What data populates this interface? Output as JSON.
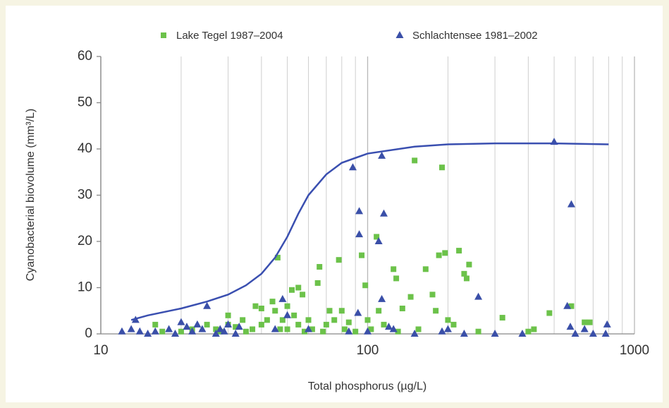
{
  "chart_data": {
    "type": "scatter",
    "x_label": "Total phosphorus (µg/L)",
    "y_label": "Cyanobacterial biovolume (mm³/L)",
    "log_x": true,
    "grid": "x",
    "legend": "top",
    "xlim": [
      10,
      1000
    ],
    "ylim": [
      0,
      60
    ],
    "xticks": [
      10,
      100,
      1000
    ],
    "x_minor_ticks": [
      20,
      30,
      40,
      50,
      60,
      70,
      80,
      90,
      200,
      300,
      400,
      500,
      600,
      700,
      800,
      900
    ],
    "yticks": [
      0,
      10,
      20,
      30,
      40,
      50,
      60
    ],
    "series": [
      {
        "name": "Lake Tegel 1987–2004",
        "marker": "square",
        "color": "#6cc24a",
        "x": [
          16,
          17,
          20,
          22,
          25,
          27,
          28,
          30,
          30,
          32,
          34,
          35,
          37,
          38,
          40,
          40,
          42,
          44,
          45,
          46,
          47,
          48,
          50,
          50,
          52,
          53,
          55,
          55,
          57,
          58,
          60,
          62,
          65,
          66,
          68,
          70,
          72,
          75,
          78,
          80,
          82,
          85,
          90,
          95,
          98,
          100,
          103,
          108,
          110,
          115,
          125,
          128,
          130,
          135,
          145,
          150,
          155,
          165,
          175,
          180,
          185,
          190,
          195,
          200,
          210,
          220,
          230,
          235,
          240,
          260,
          320,
          400,
          420,
          480,
          580,
          650,
          680
        ],
        "values": [
          2,
          0.5,
          0.5,
          1,
          2,
          1,
          0.5,
          4,
          2,
          1.5,
          3,
          0.5,
          1,
          6,
          5.5,
          2,
          3,
          7,
          5,
          16.5,
          1,
          3,
          6,
          1,
          9.5,
          4,
          10,
          2,
          8.5,
          0.5,
          3,
          1,
          11,
          14.5,
          0.5,
          2,
          5,
          3,
          16,
          5,
          1,
          2.5,
          0.5,
          17,
          10.5,
          3,
          1,
          21,
          5,
          2,
          14,
          12,
          0.5,
          5.5,
          8,
          37.5,
          1,
          14,
          8.5,
          5,
          17,
          36,
          17.5,
          3,
          2,
          18,
          13,
          12,
          15,
          0.5,
          3.5,
          0.5,
          1,
          4.5,
          6,
          2.5,
          2.5
        ]
      },
      {
        "name": "Schlachtensee 1981–2002",
        "marker": "triangle",
        "color": "#3a4fa8",
        "x": [
          12,
          13,
          13.5,
          14,
          15,
          16,
          18,
          19,
          20,
          21,
          22,
          23,
          24,
          25,
          27,
          28,
          29,
          30,
          32,
          33,
          45,
          48,
          50,
          60,
          85,
          88,
          92,
          93,
          93,
          100,
          110,
          113,
          113,
          115,
          120,
          125,
          150,
          190,
          200,
          230,
          260,
          300,
          380,
          500,
          560,
          575,
          580,
          600,
          650,
          700,
          780,
          790
        ],
        "values": [
          0.5,
          1,
          3,
          0.5,
          0,
          0.5,
          1,
          0,
          2.5,
          1.5,
          0.5,
          2,
          1,
          6,
          0,
          1,
          0.5,
          2,
          0,
          1.5,
          1,
          7.5,
          4,
          1,
          0.5,
          36,
          4.5,
          26.5,
          21.5,
          0.5,
          20,
          38.5,
          7.5,
          26,
          1.5,
          1,
          0,
          0.5,
          1,
          0,
          8,
          0,
          0,
          41.5,
          6,
          1.5,
          28,
          0,
          1,
          0,
          0,
          2
        ]
      },
      {
        "marker": "line",
        "color": "#3a4fb0",
        "x": [
          13,
          15,
          20,
          25,
          30,
          35,
          40,
          45,
          50,
          55,
          60,
          70,
          80,
          100,
          150,
          200,
          300,
          500,
          800
        ],
        "values": [
          3,
          4,
          5.5,
          7,
          8.5,
          10.5,
          13,
          16.5,
          21,
          26,
          30,
          34.5,
          37,
          39,
          40.5,
          41,
          41.2,
          41.2,
          41
        ]
      }
    ]
  }
}
